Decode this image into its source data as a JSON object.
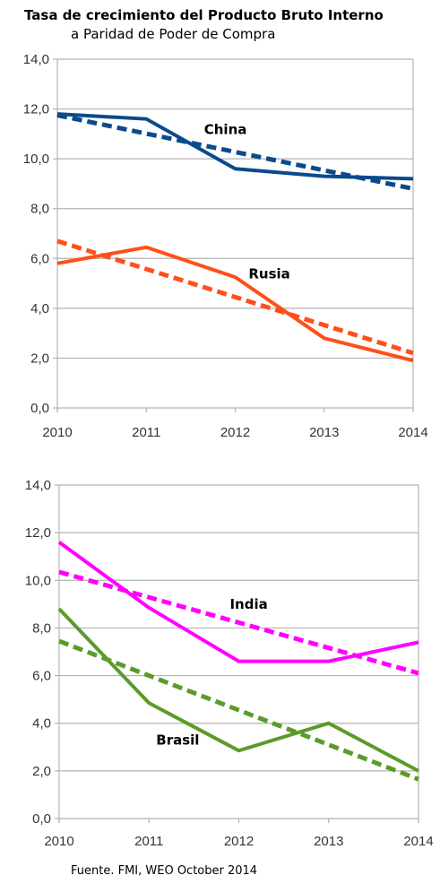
{
  "title": "Tasa de crecimiento del Producto Bruto Interno",
  "subtitle": "a Paridad de Poder de Compra",
  "source": "Fuente. FMI, WEO October 2014",
  "chart_data": [
    {
      "type": "line",
      "x": [
        "2010",
        "2011",
        "2012",
        "2013",
        "2014"
      ],
      "ylim": [
        0,
        14
      ],
      "yticks": [
        "0,0",
        "2,0",
        "4,0",
        "6,0",
        "8,0",
        "10,0",
        "12,0",
        "14,0"
      ],
      "ytick_values": [
        0,
        2,
        4,
        6,
        8,
        10,
        12,
        14
      ],
      "grid": true,
      "series": [
        {
          "name": "China",
          "style": "solid",
          "color": "#0b4a8b",
          "values": [
            11.8,
            11.6,
            9.6,
            9.3,
            9.2
          ]
        },
        {
          "style": "dashed",
          "color": "#0b4a8b",
          "values": [
            11.75,
            null,
            null,
            null,
            8.8
          ]
        },
        {
          "name": "Rusia",
          "style": "solid",
          "color": "#ff4f1a",
          "values": [
            5.8,
            6.45,
            5.25,
            2.8,
            1.9
          ]
        },
        {
          "style": "dashed",
          "color": "#ff4f1a",
          "values": [
            6.7,
            null,
            null,
            null,
            2.2
          ]
        }
      ],
      "labels": [
        {
          "text": "China",
          "x": 2011.65,
          "y": 11.0
        },
        {
          "text": "Rusia",
          "x": 2012.15,
          "y": 5.2
        }
      ]
    },
    {
      "type": "line",
      "x": [
        "2010",
        "2011",
        "2012",
        "2013",
        "2014"
      ],
      "ylim": [
        0,
        14
      ],
      "yticks": [
        "0,0",
        "2,0",
        "4,0",
        "6,0",
        "8,0",
        "10,0",
        "12,0",
        "14,0"
      ],
      "ytick_values": [
        0,
        2,
        4,
        6,
        8,
        10,
        12,
        14
      ],
      "grid": true,
      "series": [
        {
          "name": "India",
          "style": "solid",
          "color": "#ff00ff",
          "values": [
            11.6,
            8.85,
            6.6,
            6.6,
            7.4
          ]
        },
        {
          "style": "dashed",
          "color": "#ff00ff",
          "values": [
            10.35,
            null,
            null,
            null,
            6.1
          ]
        },
        {
          "name": "Brasil",
          "style": "solid",
          "color": "#5b9b2a",
          "values": [
            8.8,
            4.85,
            2.85,
            4.0,
            2.0
          ]
        },
        {
          "style": "dashed",
          "color": "#5b9b2a",
          "values": [
            7.45,
            null,
            null,
            null,
            1.65
          ]
        }
      ],
      "labels": [
        {
          "text": "India",
          "x": 2011.9,
          "y": 8.8
        },
        {
          "text": "Brasil",
          "x": 2011.08,
          "y": 3.1
        }
      ]
    }
  ]
}
